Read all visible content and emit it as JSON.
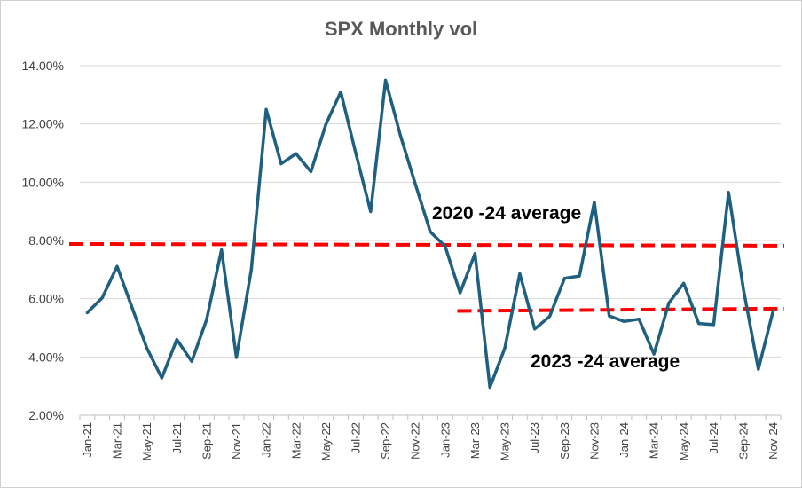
{
  "chart_data": {
    "type": "line",
    "title": "SPX Monthly vol",
    "ylim": [
      0.02,
      0.14
    ],
    "yticks": [
      "2.00%",
      "4.00%",
      "6.00%",
      "8.00%",
      "10.00%",
      "12.00%",
      "14.00%"
    ],
    "ytick_values": [
      0.02,
      0.04,
      0.06,
      0.08,
      0.1,
      0.12,
      0.14
    ],
    "grid": true,
    "categories": [
      "Jan-21",
      "Feb-21",
      "Mar-21",
      "Apr-21",
      "May-21",
      "Jun-21",
      "Jul-21",
      "Aug-21",
      "Sep-21",
      "Oct-21",
      "Nov-21",
      "Dec-21",
      "Jan-22",
      "Feb-22",
      "Mar-22",
      "Apr-22",
      "May-22",
      "Jun-22",
      "Jul-22",
      "Aug-22",
      "Sep-22",
      "Oct-22",
      "Nov-22",
      "Dec-22",
      "Jan-23",
      "Feb-23",
      "Mar-23",
      "Apr-23",
      "May-23",
      "Jun-23",
      "Jul-23",
      "Aug-23",
      "Sep-23",
      "Oct-23",
      "Nov-23",
      "Dec-23",
      "Jan-24",
      "Feb-24",
      "Mar-24",
      "Apr-24",
      "May-24",
      "Jun-24",
      "Jul-24",
      "Aug-24",
      "Sep-24",
      "Oct-24",
      "Nov-24"
    ],
    "xtick_labels": [
      "Jan-21",
      "Mar-21",
      "May-21",
      "Jul-21",
      "Sep-21",
      "Nov-21",
      "Jan-22",
      "Mar-22",
      "May-22",
      "Jul-22",
      "Sep-22",
      "Nov-22",
      "Jan-23",
      "Mar-23",
      "May-23",
      "Jul-23",
      "Sep-23",
      "Nov-23",
      "Jan-24",
      "Mar-24",
      "May-24",
      "Jul-24",
      "Sep-24",
      "Nov-24"
    ],
    "series": [
      {
        "color": "#1f5f7f",
        "values": [
          0.0552,
          0.0603,
          0.0711,
          0.057,
          0.043,
          0.0328,
          0.046,
          0.0385,
          0.0528,
          0.0768,
          0.0398,
          0.07,
          0.125,
          0.1063,
          0.1098,
          0.1036,
          0.1198,
          0.131,
          0.11,
          0.0899,
          0.135,
          0.116,
          0.0993,
          0.083,
          0.078,
          0.062,
          0.0755,
          0.0296,
          0.043,
          0.0686,
          0.0496,
          0.0539,
          0.067,
          0.0678,
          0.0932,
          0.0541,
          0.0522,
          0.053,
          0.041,
          0.0585,
          0.0653,
          0.0515,
          0.0511,
          0.0965,
          0.0632,
          0.0358,
          0.056
        ]
      }
    ],
    "averages": [
      {
        "label": "2020 -24 average",
        "value": 0.0788,
        "start": "Jan-21",
        "end": "Nov-24",
        "end_value": 0.0782,
        "color": "#ff0000"
      },
      {
        "label": "2023 -24 average",
        "value": 0.0558,
        "start": "Mar-23",
        "end": "Nov-24",
        "end_value": 0.0566,
        "color": "#ff0000"
      }
    ]
  }
}
